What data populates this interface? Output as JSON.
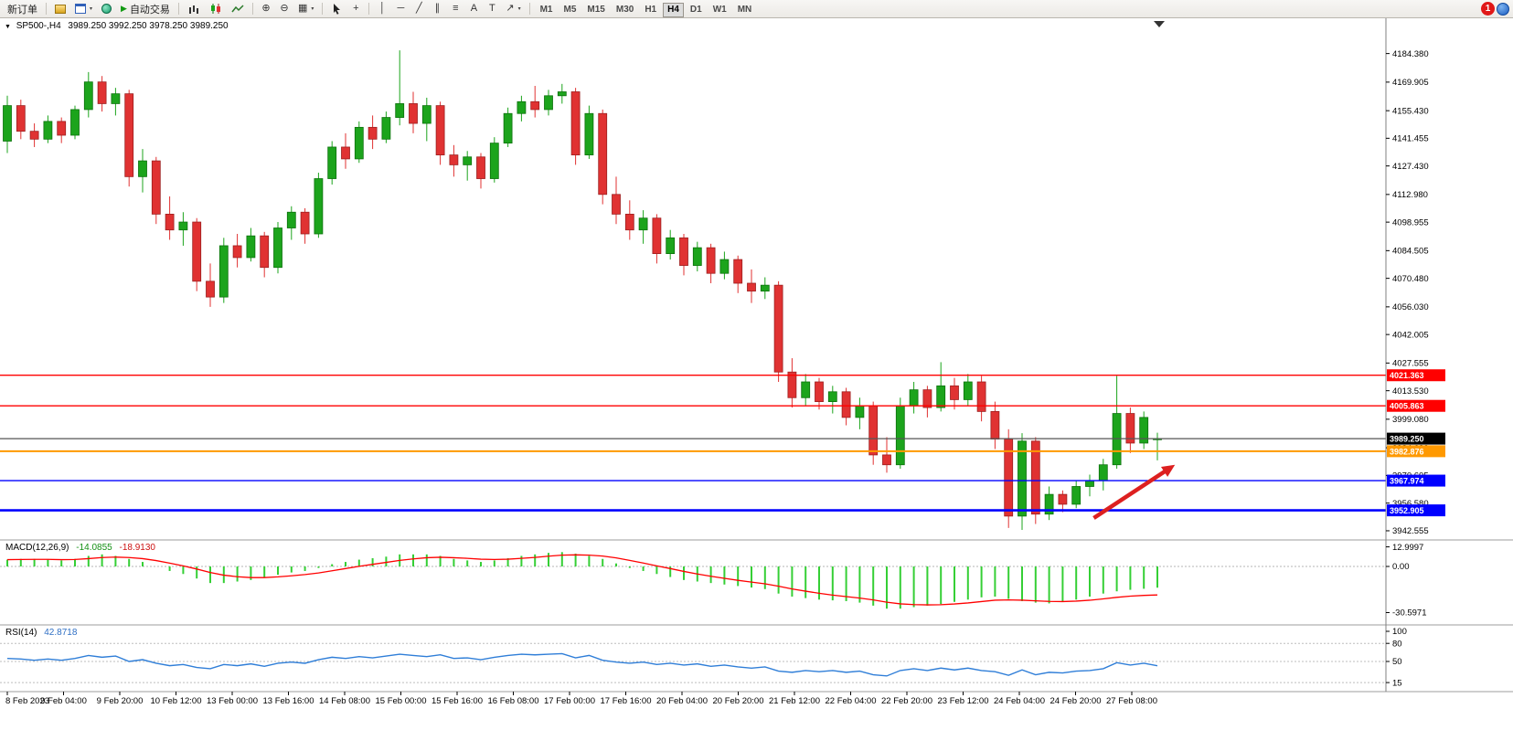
{
  "toolbar": {
    "new_order_label": "新订单",
    "auto_trading_label": "自动交易",
    "timeframes": [
      "M1",
      "M5",
      "M15",
      "M30",
      "H1",
      "H4",
      "D1",
      "W1",
      "MN"
    ],
    "active_timeframe": "H4",
    "notification_count": "1",
    "icon_glyphs": {
      "zoom_in": "⊕",
      "zoom_out": "⊖",
      "tile": "▦",
      "crosshair": "+",
      "vline": "│",
      "hline": "─",
      "trendline": "╱",
      "channel": "∥",
      "fibonacci": "≡",
      "text": "A",
      "label": "T",
      "arrows": "↗",
      "caret": "▾",
      "play": "▶"
    }
  },
  "chart": {
    "collapse_glyph": "▼",
    "symbol_period": "SP500-,H4",
    "ohlc_text": "3989.250 3992.250 3978.250 3989.250"
  },
  "indicators": {
    "macd": {
      "label": "MACD(12,26,9)",
      "value_main": "-14.0855",
      "value_signal": "-18.9130"
    },
    "rsi": {
      "label": "RSI(14)",
      "value": "42.8718"
    }
  },
  "chart_data": {
    "type": "candlestick",
    "symbol": "SP500-",
    "period": "H4",
    "title": "SP500-,H4 3989.250 3992.250 3978.250 3989.250",
    "colors": {
      "up": "#1ca41c",
      "up_border": "#0c710c",
      "down": "#e03232",
      "down_border": "#9c1f1f",
      "macd_hist": "#35cf35",
      "macd_signal": "#ff0000",
      "rsi_line": "#2f7ed8",
      "axis_text": "#000000"
    },
    "price_axis": [
      4184.38,
      4169.905,
      4155.43,
      4141.455,
      4127.43,
      4112.98,
      4098.955,
      4084.505,
      4070.48,
      4056.03,
      4042.005,
      4027.555,
      4013.53,
      3999.08,
      3984.63,
      3970.605,
      3956.58,
      3942.555
    ],
    "time_axis": [
      "8 Feb 2023",
      "9 Feb 04:00",
      "9 Feb 20:00",
      "10 Feb 12:00",
      "13 Feb 00:00",
      "13 Feb 16:00",
      "14 Feb 08:00",
      "15 Feb 00:00",
      "15 Feb 16:00",
      "16 Feb 08:00",
      "17 Feb 00:00",
      "17 Feb 16:00",
      "20 Feb 04:00",
      "20 Feb 20:00",
      "21 Feb 12:00",
      "22 Feb 04:00",
      "22 Feb 20:00",
      "23 Feb 12:00",
      "24 Feb 04:00",
      "24 Feb 20:00",
      "27 Feb 08:00"
    ],
    "candles": [
      [
        4140,
        4163,
        4134,
        4158
      ],
      [
        4158,
        4161,
        4141,
        4145
      ],
      [
        4145,
        4149,
        4137,
        4141
      ],
      [
        4141,
        4153,
        4139,
        4150
      ],
      [
        4150,
        4152,
        4139,
        4143
      ],
      [
        4143,
        4158,
        4141,
        4156
      ],
      [
        4156,
        4175,
        4152,
        4170
      ],
      [
        4170,
        4173,
        4155,
        4159
      ],
      [
        4159,
        4167,
        4153,
        4164
      ],
      [
        4164,
        4166,
        4117,
        4122
      ],
      [
        4122,
        4136,
        4114,
        4130
      ],
      [
        4130,
        4132,
        4098,
        4103
      ],
      [
        4103,
        4112,
        4090,
        4095
      ],
      [
        4095,
        4104,
        4087,
        4099
      ],
      [
        4099,
        4101,
        4064,
        4069
      ],
      [
        4069,
        4078,
        4056,
        4061
      ],
      [
        4061,
        4091,
        4058,
        4087
      ],
      [
        4087,
        4093,
        4076,
        4081
      ],
      [
        4081,
        4096,
        4079,
        4092
      ],
      [
        4092,
        4094,
        4071,
        4076
      ],
      [
        4076,
        4099,
        4073,
        4096
      ],
      [
        4096,
        4107,
        4090,
        4104
      ],
      [
        4104,
        4106,
        4088,
        4093
      ],
      [
        4093,
        4124,
        4091,
        4121
      ],
      [
        4121,
        4140,
        4118,
        4137
      ],
      [
        4137,
        4144,
        4126,
        4131
      ],
      [
        4131,
        4150,
        4129,
        4147
      ],
      [
        4147,
        4153,
        4136,
        4141
      ],
      [
        4141,
        4155,
        4139,
        4152
      ],
      [
        4152,
        4186,
        4148,
        4159
      ],
      [
        4159,
        4165,
        4144,
        4149
      ],
      [
        4149,
        4162,
        4140,
        4158
      ],
      [
        4158,
        4160,
        4128,
        4133
      ],
      [
        4133,
        4138,
        4122,
        4128
      ],
      [
        4128,
        4135,
        4120,
        4132
      ],
      [
        4132,
        4134,
        4116,
        4121
      ],
      [
        4121,
        4142,
        4119,
        4139
      ],
      [
        4139,
        4157,
        4137,
        4154
      ],
      [
        4154,
        4163,
        4150,
        4160
      ],
      [
        4160,
        4168,
        4152,
        4156
      ],
      [
        4156,
        4166,
        4153,
        4163
      ],
      [
        4163,
        4169,
        4159,
        4165
      ],
      [
        4165,
        4167,
        4128,
        4133
      ],
      [
        4133,
        4158,
        4131,
        4154
      ],
      [
        4154,
        4156,
        4108,
        4113
      ],
      [
        4113,
        4122,
        4098,
        4103
      ],
      [
        4103,
        4110,
        4090,
        4095
      ],
      [
        4095,
        4105,
        4088,
        4101
      ],
      [
        4101,
        4103,
        4078,
        4083
      ],
      [
        4083,
        4095,
        4080,
        4091
      ],
      [
        4091,
        4093,
        4072,
        4077
      ],
      [
        4077,
        4089,
        4074,
        4086
      ],
      [
        4086,
        4088,
        4068,
        4073
      ],
      [
        4073,
        4084,
        4070,
        4080
      ],
      [
        4080,
        4082,
        4063,
        4068
      ],
      [
        4068,
        4075,
        4058,
        4064
      ],
      [
        4064,
        4071,
        4060,
        4067
      ],
      [
        4067,
        4069,
        4018,
        4023
      ],
      [
        4023,
        4030,
        4005,
        4010
      ],
      [
        4010,
        4022,
        4006,
        4018
      ],
      [
        4018,
        4020,
        4004,
        4008
      ],
      [
        4008,
        4016,
        4002,
        4013
      ],
      [
        4013,
        4015,
        3996,
        4000
      ],
      [
        4000,
        4010,
        3994,
        4006
      ],
      [
        4006,
        4008,
        3976,
        3981
      ],
      [
        3981,
        3990,
        3972,
        3976
      ],
      [
        3976,
        4010,
        3974,
        4006
      ],
      [
        4006,
        4018,
        4002,
        4014
      ],
      [
        4014,
        4016,
        4000,
        4005
      ],
      [
        4005,
        4028,
        4003,
        4016
      ],
      [
        4016,
        4020,
        4004,
        4009
      ],
      [
        4009,
        4022,
        4006,
        4018
      ],
      [
        4018,
        4021,
        3998,
        4003
      ],
      [
        4003,
        4008,
        3984,
        3989
      ],
      [
        3989,
        3994,
        3944,
        3950
      ],
      [
        3950,
        3992,
        3943,
        3988
      ],
      [
        3988,
        3990,
        3946,
        3951
      ],
      [
        3951,
        3965,
        3948,
        3961
      ],
      [
        3961,
        3963,
        3952,
        3956
      ],
      [
        3956,
        3968,
        3954,
        3965
      ],
      [
        3965,
        3971,
        3960,
        3968
      ],
      [
        3968,
        3979,
        3963,
        3976
      ],
      [
        3976,
        4021,
        3974,
        4002
      ],
      [
        4002,
        4005,
        3982,
        3987
      ],
      [
        3987,
        4003,
        3984,
        4000
      ],
      [
        3989.25,
        3992.25,
        3978.25,
        3989.25
      ]
    ],
    "hlines": [
      {
        "price": 4021.363,
        "color": "#ff0000",
        "width": 1.4
      },
      {
        "price": 4005.863,
        "color": "#ff0000",
        "width": 1.4
      },
      {
        "price": 3989.25,
        "color": "#555555",
        "width": 1.2,
        "tag_bg": "#000000"
      },
      {
        "price": 3982.876,
        "color": "#ff9900",
        "width": 2
      },
      {
        "price": 3967.974,
        "color": "#0000ff",
        "width": 1.4
      },
      {
        "price": 3952.905,
        "color": "#0000ff",
        "width": 2.6
      }
    ],
    "arrow": {
      "from_bar": 80.3,
      "from_price": 3949,
      "to_bar": 86.3,
      "to_price": 3976,
      "color": "#dd2020"
    },
    "macd": {
      "hist": [
        4.5,
        5,
        5,
        4.5,
        4,
        5,
        7,
        8,
        7,
        5,
        3,
        0,
        -3,
        -5,
        -8,
        -11,
        -11,
        -10,
        -9,
        -7.5,
        -5.5,
        -4,
        -3,
        -1,
        1.5,
        3,
        4.5,
        5.5,
        6.5,
        8,
        8,
        8,
        7,
        5,
        4,
        3,
        4,
        5.5,
        7,
        8,
        9,
        9.5,
        8.5,
        7,
        5,
        2,
        -1,
        -3,
        -5,
        -7,
        -9,
        -10,
        -11,
        -12,
        -13,
        -14,
        -15,
        -18,
        -20,
        -21,
        -22,
        -22.5,
        -23,
        -24,
        -26,
        -28,
        -28,
        -27,
        -26,
        -25,
        -23.5,
        -22,
        -20.5,
        -20,
        -21.5,
        -23,
        -24,
        -24.5,
        -23.5,
        -22,
        -20,
        -18,
        -16.5,
        -15.5,
        -14.8,
        -14.09
      ],
      "signal": [
        4.5,
        4.6,
        4.7,
        4.7,
        4.5,
        4.6,
        5.2,
        5.9,
        6.2,
        5.9,
        5.2,
        3.9,
        2.2,
        0.4,
        -1.7,
        -4.0,
        -5.8,
        -6.8,
        -7.4,
        -7.4,
        -6.9,
        -6.2,
        -5.4,
        -4.3,
        -2.9,
        -1.4,
        0.1,
        1.4,
        2.7,
        4.0,
        5.0,
        5.8,
        6.1,
        5.8,
        5.4,
        4.8,
        4.6,
        4.8,
        5.4,
        6.0,
        6.8,
        7.5,
        7.7,
        7.5,
        6.9,
        5.7,
        4.0,
        2.3,
        0.4,
        -1.4,
        -3.3,
        -5.0,
        -6.5,
        -7.9,
        -9.2,
        -10.4,
        -11.5,
        -13.1,
        -14.9,
        -16.4,
        -17.8,
        -19.0,
        -20.0,
        -21.0,
        -22.2,
        -23.7,
        -24.8,
        -25.3,
        -25.5,
        -25.4,
        -24.9,
        -24.2,
        -23.3,
        -22.4,
        -22.2,
        -22.4,
        -22.8,
        -23.2,
        -23.3,
        -23.0,
        -22.4,
        -21.5,
        -20.5,
        -19.7,
        -19.2,
        -18.91
      ],
      "axis_labels": [
        "12.9997",
        "0.00",
        "-30.5971"
      ],
      "zero_level": 0
    },
    "rsi": {
      "values": [
        55,
        54,
        52,
        54,
        52,
        55,
        60,
        57,
        59,
        50,
        53,
        47,
        43,
        45,
        40,
        38,
        45,
        43,
        46,
        42,
        47,
        49,
        47,
        53,
        57,
        55,
        58,
        56,
        59,
        62,
        60,
        58,
        61,
        55,
        56,
        53,
        57,
        60,
        62,
        61,
        62,
        63,
        56,
        60,
        52,
        49,
        47,
        49,
        45,
        47,
        44,
        46,
        42,
        44,
        41,
        39,
        41,
        34,
        32,
        35,
        33,
        35,
        32,
        34,
        28,
        26,
        35,
        38,
        35,
        39,
        36,
        39,
        35,
        33,
        27,
        36,
        28,
        32,
        31,
        34,
        35,
        38,
        48,
        44,
        47,
        42.87
      ],
      "levels": [
        80,
        50,
        15
      ],
      "axis_labels": [
        "100",
        "80",
        "50",
        "15"
      ]
    }
  }
}
